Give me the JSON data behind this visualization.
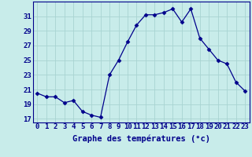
{
  "hours": [
    0,
    1,
    2,
    3,
    4,
    5,
    6,
    7,
    8,
    9,
    10,
    11,
    12,
    13,
    14,
    15,
    16,
    17,
    18,
    19,
    20,
    21,
    22,
    23
  ],
  "temperatures": [
    20.5,
    20.0,
    20.0,
    19.2,
    19.5,
    18.0,
    17.5,
    17.2,
    23.0,
    25.0,
    27.5,
    29.8,
    31.2,
    31.2,
    31.5,
    32.0,
    30.2,
    32.0,
    28.0,
    26.5,
    25.0,
    24.5,
    22.0,
    20.8
  ],
  "line_color": "#00008B",
  "marker": "D",
  "marker_size": 2.5,
  "bg_color": "#c8ecea",
  "grid_color": "#a8d4d2",
  "ylabel_ticks": [
    17,
    19,
    21,
    23,
    25,
    27,
    29,
    31
  ],
  "xlabel": "Graphe des températures (°c)",
  "xlim": [
    -0.5,
    23.5
  ],
  "ylim": [
    16.5,
    33.0
  ],
  "xlabel_fontsize": 7.5,
  "tick_fontsize": 6.5,
  "fig_width": 3.2,
  "fig_height": 2.0,
  "dpi": 100
}
